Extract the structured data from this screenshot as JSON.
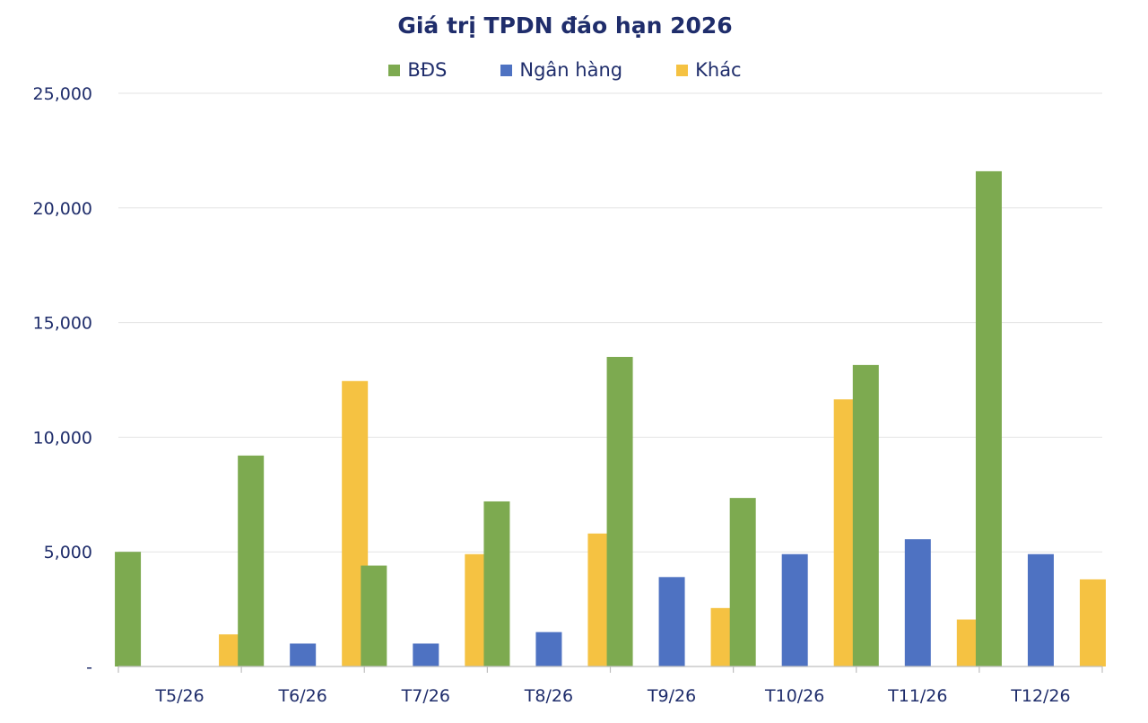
{
  "chart_data": {
    "type": "bar",
    "title": "Giá trị TPDN đáo hạn 2026",
    "xlabel": "",
    "ylabel": "",
    "categories": [
      "T5/26",
      "T6/26",
      "T7/26",
      "T8/26",
      "T9/26",
      "T10/26",
      "T11/26",
      "T12/26"
    ],
    "series": [
      {
        "name": "BĐS",
        "color": "#7daa50",
        "values": [
          5000,
          9200,
          4400,
          7200,
          13500,
          7350,
          13150,
          21600
        ]
      },
      {
        "name": "Ngân hàng",
        "color": "#4e72c2",
        "values": [
          0,
          1000,
          1000,
          1500,
          3900,
          4900,
          5550,
          4900
        ]
      },
      {
        "name": "Khác",
        "color": "#f5c242",
        "values": [
          1400,
          12450,
          4900,
          5800,
          2550,
          11650,
          2050,
          3800
        ]
      }
    ],
    "ylim": [
      0,
      25000
    ],
    "yticks": [
      {
        "value": 0,
        "label": "-"
      },
      {
        "value": 5000,
        "label": "5,000"
      },
      {
        "value": 10000,
        "label": "10,000"
      },
      {
        "value": 15000,
        "label": "15,000"
      },
      {
        "value": 20000,
        "label": "20,000"
      },
      {
        "value": 25000,
        "label": "25,000"
      }
    ],
    "grid": true,
    "legend_position": "top-center"
  }
}
